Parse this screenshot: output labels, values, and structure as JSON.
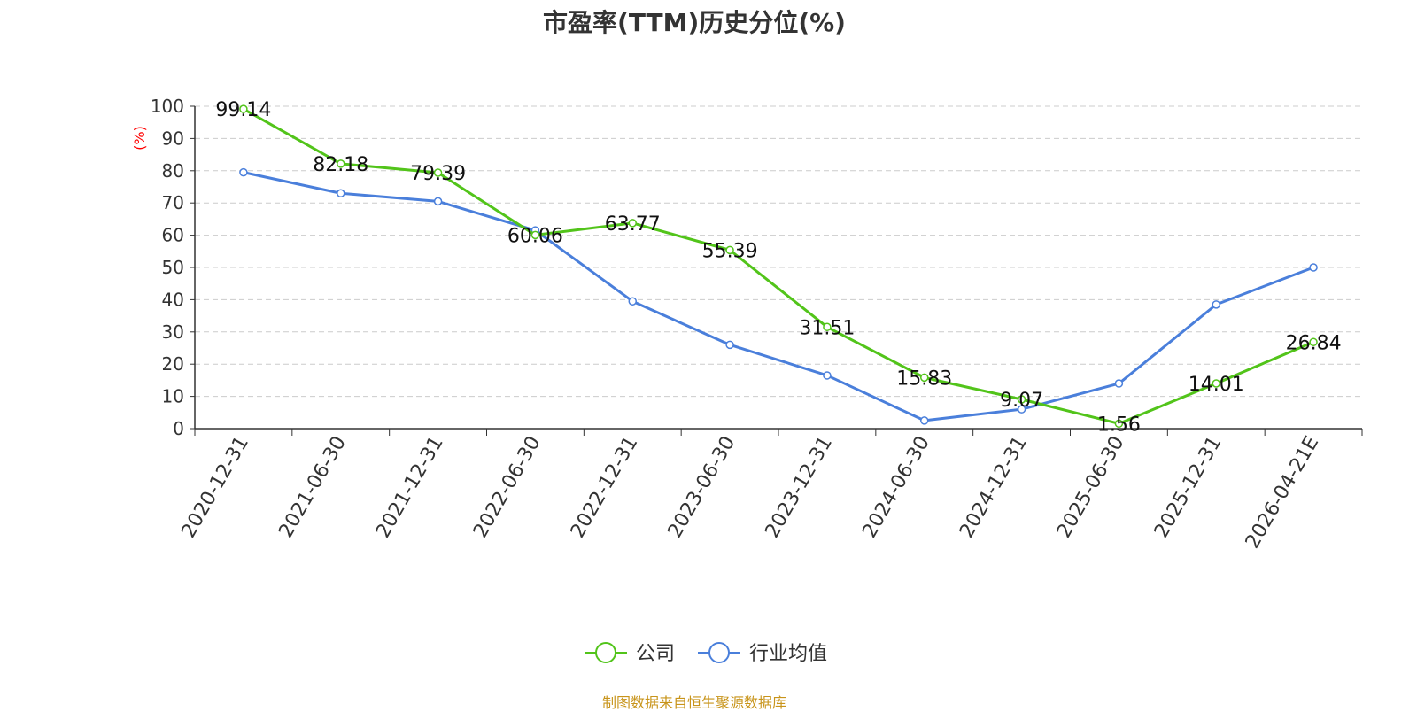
{
  "title": "市盈率(TTM)历史分位(%)",
  "source": "制图数据来自恒生聚源数据库",
  "colors": {
    "company": "#52c41a",
    "industry": "#4a7fdb",
    "ylabel": "#ff0000",
    "source": "#c8941a",
    "grid": "#cccccc",
    "axis": "#333333"
  },
  "chart_data": {
    "type": "line",
    "title": "市盈率(TTM)历史分位(%)",
    "ylabel": "(%)",
    "xlabel": "",
    "ylim": [
      0,
      100
    ],
    "yticks": [
      0,
      10,
      20,
      30,
      40,
      50,
      60,
      70,
      80,
      90,
      100
    ],
    "grid": "horizontal-dashed",
    "legend_position": "bottom-center",
    "categories": [
      "2020-12-31",
      "2021-06-30",
      "2021-12-31",
      "2022-06-30",
      "2022-12-31",
      "2023-06-30",
      "2023-12-31",
      "2024-06-30",
      "2024-12-31",
      "2025-06-30",
      "2025-12-31",
      "2026-04-21E"
    ],
    "series": [
      {
        "name": "公司",
        "color": "#52c41a",
        "values": [
          99.14,
          82.18,
          79.39,
          60.06,
          63.77,
          55.39,
          31.51,
          15.83,
          9.07,
          1.56,
          14.01,
          26.84
        ],
        "labels": [
          "99.14",
          "82.18",
          "79.39",
          "60.06",
          "63.77",
          "55.39",
          "31.51",
          "15.83",
          "9.07",
          "1.56",
          "14.01",
          "26.84"
        ]
      },
      {
        "name": "行业均值",
        "color": "#4a7fdb",
        "values": [
          79.5,
          73,
          70.5,
          61.5,
          39.5,
          26,
          16.5,
          2.5,
          6,
          14,
          38.5,
          50
        ]
      }
    ]
  }
}
